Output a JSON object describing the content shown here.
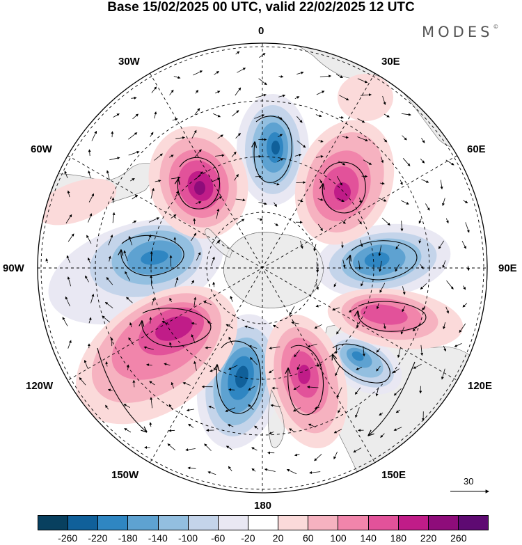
{
  "title": "Base 15/02/2025 00 UTC, valid 22/02/2025 12 UTC",
  "brand": "MODES",
  "brand_mark": "©",
  "longitude_labels": {
    "lon_0": "0",
    "lon_30e": "30E",
    "lon_60e": "60E",
    "lon_90e": "90E",
    "lon_120e": "120E",
    "lon_150e": "150E",
    "lon_180": "180",
    "lon_150w": "150W",
    "lon_120w": "120W",
    "lon_90w": "90W",
    "lon_60w": "60W",
    "lon_30w": "30W"
  },
  "wind_scale": {
    "value": "30"
  },
  "colorbar": {
    "ticks": [
      "-260",
      "-220",
      "-180",
      "-140",
      "-100",
      "-60",
      "-20",
      "20",
      "60",
      "100",
      "140",
      "180",
      "220",
      "260"
    ],
    "colors": [
      "#08405f",
      "#10609a",
      "#2f86c2",
      "#5ea2d1",
      "#93bfe0",
      "#c4d4ea",
      "#e9e8f3",
      "#ffffff",
      "#fbdada",
      "#f6b2c0",
      "#f185ab",
      "#e2529a",
      "#c01c88",
      "#8e0c7a",
      "#5e0a72"
    ]
  },
  "anomaly_cells": [
    {
      "name": "cell-blue-north",
      "value": -230
    },
    {
      "name": "cell-pink-nw",
      "value": 230
    },
    {
      "name": "cell-pink-ne",
      "value": 220
    },
    {
      "name": "cell-blue-east",
      "value": -200
    },
    {
      "name": "cell-pink-east",
      "value": 190
    },
    {
      "name": "cell-blue-se",
      "value": -190
    },
    {
      "name": "cell-pink-south",
      "value": 230
    },
    {
      "name": "cell-blue-south",
      "value": -250
    },
    {
      "name": "cell-pink-sw",
      "value": 240
    },
    {
      "name": "cell-blue-west",
      "value": -190
    }
  ]
}
